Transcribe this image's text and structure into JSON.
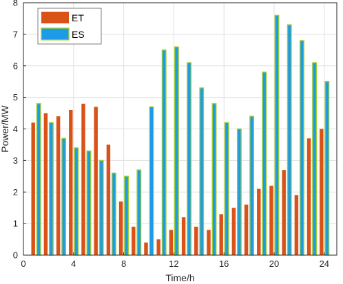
{
  "chart_data": {
    "type": "bar",
    "xlabel": "Time/h",
    "ylabel": "Power/MW",
    "xlim": [
      0,
      25
    ],
    "ylim": [
      0,
      8
    ],
    "xticks": [
      0,
      4,
      8,
      12,
      16,
      20,
      24
    ],
    "yticks": [
      0,
      1,
      2,
      3,
      4,
      5,
      6,
      7,
      8
    ],
    "grid": true,
    "legend_position": "top-left",
    "x": [
      1,
      2,
      3,
      4,
      5,
      6,
      7,
      8,
      9,
      10,
      11,
      12,
      13,
      14,
      15,
      16,
      17,
      18,
      19,
      20,
      21,
      22,
      23,
      24
    ],
    "series": [
      {
        "name": "ET",
        "color": "#D95319",
        "values": [
          4.2,
          4.5,
          4.4,
          4.6,
          4.8,
          4.7,
          3.5,
          1.7,
          0.9,
          0.4,
          0.5,
          0.8,
          1.2,
          0.9,
          0.8,
          1.3,
          1.5,
          1.6,
          2.1,
          2.2,
          2.7,
          1.9,
          3.7,
          4.0
        ]
      },
      {
        "name": "ES",
        "color": "#1E9BE6",
        "edge_color": "#9ACD32",
        "values": [
          4.8,
          4.2,
          3.7,
          3.4,
          3.3,
          3.0,
          2.6,
          2.5,
          2.7,
          4.7,
          6.5,
          6.6,
          6.1,
          5.3,
          4.8,
          4.2,
          4.0,
          4.4,
          5.8,
          7.6,
          7.3,
          6.8,
          6.1,
          5.5
        ]
      }
    ]
  }
}
